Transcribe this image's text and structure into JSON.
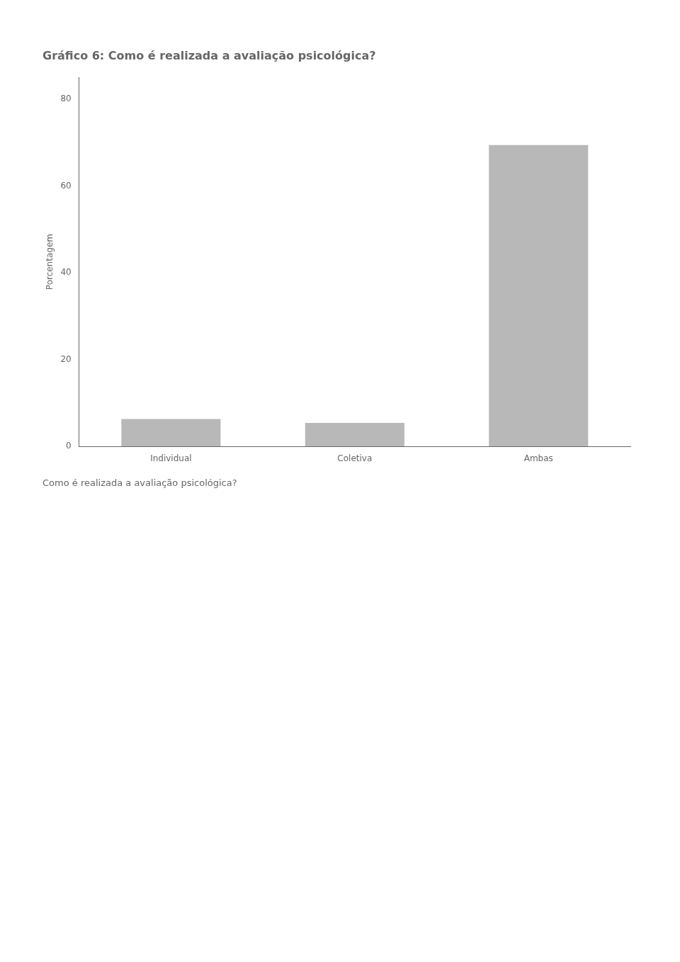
{
  "chart_data": {
    "type": "bar",
    "title": "Gráfico 6: Como é realizada a avaliação psicológica?",
    "subtitle": "Como é realizada a avaliação psicológica?",
    "y_label": "Porcentagem",
    "categories": [
      "Individual",
      "Coletiva",
      "Ambas"
    ],
    "values": [
      6.3,
      5.4,
      69.4
    ],
    "color": "#b8b8b8",
    "ylim": [
      0,
      85
    ],
    "yticks": [
      0,
      20,
      40,
      60,
      80
    ],
    "grid": false
  }
}
